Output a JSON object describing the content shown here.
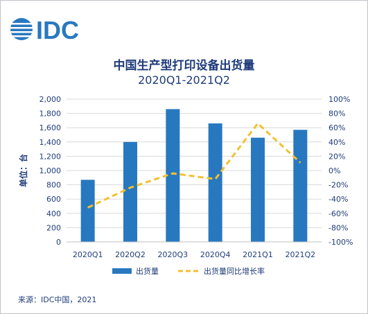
{
  "logo_text": "IDC",
  "colors": {
    "bar": "#2878c0",
    "line": "#f2c12e",
    "text": "#1f3b7a",
    "grid": "#d9d9d9"
  },
  "chart_data": {
    "type": "bar",
    "title": "中国生产型打印设备出货量",
    "subtitle": "2020Q1-2021Q2",
    "categories": [
      "2020Q1",
      "2020Q2",
      "2020Q3",
      "2020Q4",
      "2021Q1",
      "2021Q2"
    ],
    "ylabel": "单位：台",
    "ylim": [
      0,
      2000
    ],
    "y_ticks": [
      "0",
      "200",
      "400",
      "600",
      "800",
      "1,000",
      "1,200",
      "1,400",
      "1,600",
      "1,800",
      "2,000"
    ],
    "y2lim": [
      -100,
      100
    ],
    "y2_ticks": [
      "-100%",
      "-80%",
      "-60%",
      "-40%",
      "-20%",
      "0%",
      "20%",
      "40%",
      "60%",
      "80%",
      "100%"
    ],
    "grid": true,
    "legend_position": "bottom",
    "series": [
      {
        "name": "出货量",
        "kind": "bar",
        "axis": "left",
        "values": [
          870,
          1400,
          1860,
          1660,
          1460,
          1570
        ]
      },
      {
        "name": "出货量同比增长率",
        "kind": "line",
        "axis": "right",
        "style": "dashed",
        "values": [
          -52,
          -24,
          -4,
          -12,
          66,
          11
        ]
      }
    ]
  },
  "source": "来源：IDC中国，2021"
}
